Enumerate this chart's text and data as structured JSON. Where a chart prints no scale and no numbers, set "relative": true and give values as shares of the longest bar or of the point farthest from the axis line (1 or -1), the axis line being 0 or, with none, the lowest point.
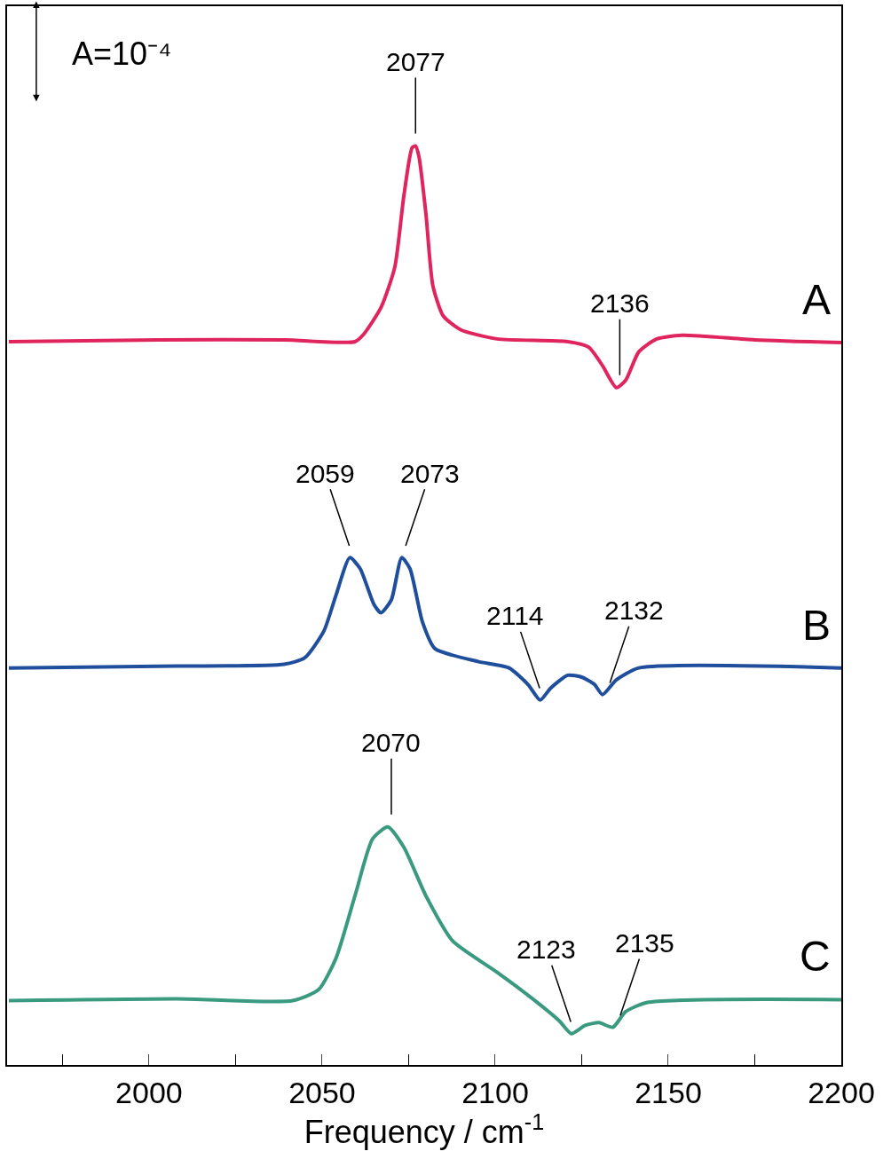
{
  "chart_data": {
    "type": "line",
    "relative": true,
    "xlabel": "Frequency / cm$^{-1}$",
    "xlim": [
      1959,
      2200
    ],
    "xticks": [
      {
        "value": 1975,
        "label": null
      },
      2000,
      {
        "value": 2025,
        "label": null
      },
      2050,
      {
        "value": 2075,
        "label": null
      },
      2100,
      {
        "value": 2125,
        "label": null
      },
      2150,
      {
        "value": 2175,
        "label": null
      },
      2200
    ],
    "legend": false,
    "marker": "none",
    "line_style": "solid",
    "series": [
      {
        "name": "A",
        "color": "#e0245e",
        "x": [
          1959.5,
          2003,
          2039,
          2059.5,
          2062,
          2067,
          2071,
          2073.6,
          2076,
          2077,
          2078,
          2080,
          2082,
          2085,
          2090,
          2100.5,
          2121,
          2127,
          2131,
          2135,
          2137.7,
          2141.5,
          2146.7,
          2154,
          2175,
          2200
        ],
        "values": [
          0.787,
          0.789,
          0.789,
          0.787,
          0.795,
          0.824,
          0.868,
          0.945,
          0.998,
          1.0,
          0.988,
          0.926,
          0.848,
          0.815,
          0.8,
          0.79,
          0.787,
          0.781,
          0.761,
          0.737,
          0.745,
          0.776,
          0.79,
          0.794,
          0.789,
          0.786
        ]
      },
      {
        "name": "B",
        "color": "#1f4e9c",
        "x": [
          1959.5,
          2008,
          2039,
          2045,
          2050.5,
          2054,
          2058,
          2061,
          2065,
          2067,
          2070,
          2073,
          2075.4,
          2079,
          2082.6,
          2095,
          2104,
          2109.5,
          2113,
          2116,
          2121,
          2125,
          2128.7,
          2131,
          2135,
          2141.5,
          2200
        ],
        "values": [
          0.432,
          0.434,
          0.436,
          0.443,
          0.472,
          0.511,
          0.552,
          0.54,
          0.501,
          0.492,
          0.506,
          0.552,
          0.54,
          0.482,
          0.453,
          0.439,
          0.432,
          0.414,
          0.397,
          0.41,
          0.424,
          0.422,
          0.414,
          0.403,
          0.419,
          0.432,
          0.432
        ]
      },
      {
        "name": "C",
        "color": "#3a9a80",
        "x": [
          1959.5,
          2008,
          2041.5,
          2049,
          2054,
          2059.5,
          2064.6,
          2069,
          2073.6,
          2080,
          2087.7,
          2100.5,
          2110.8,
          2118.5,
          2122,
          2126,
          2130,
          2134,
          2137.7,
          2144,
          2200
        ],
        "values": [
          0.07,
          0.072,
          0.07,
          0.082,
          0.116,
          0.184,
          0.246,
          0.259,
          0.237,
          0.184,
          0.135,
          0.101,
          0.072,
          0.048,
          0.034,
          0.043,
          0.046,
          0.041,
          0.058,
          0.068,
          0.071
        ]
      }
    ],
    "annotations": [
      "A=10⁻⁴",
      {
        "text": "2077",
        "x": 2077,
        "y": 1.0
      },
      {
        "text": "2136",
        "x": 2136,
        "y": 0.737
      },
      {
        "text": "2059",
        "x": 2059,
        "y": 0.552
      },
      {
        "text": "2073",
        "x": 2073,
        "y": 0.552
      },
      {
        "text": "2114",
        "x": 2114,
        "y": 0.397
      },
      {
        "text": "2132",
        "x": 2132,
        "y": 0.403
      },
      {
        "text": "2070",
        "x": 2070,
        "y": 0.259
      },
      {
        "text": "2123",
        "x": 2123,
        "y": 0.034
      },
      {
        "text": "2135",
        "x": 2135,
        "y": 0.041
      }
    ]
  }
}
